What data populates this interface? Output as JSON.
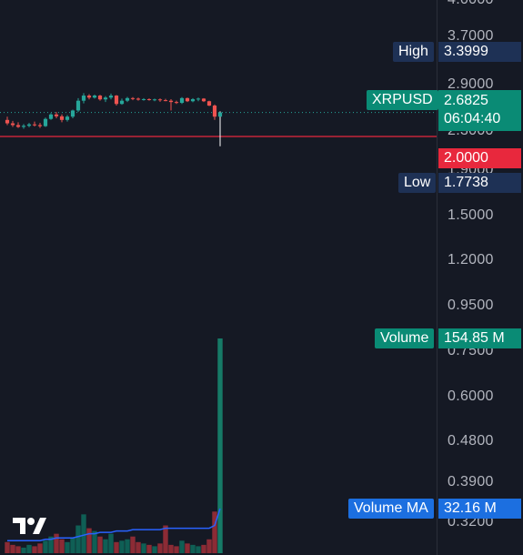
{
  "price_axis": {
    "ticks": [
      "4.0000",
      "3.7000",
      "2.9000",
      "2.3000",
      "1.9000",
      "1.5000",
      "1.2000",
      "0.9500",
      "0.7500",
      "0.6000",
      "0.4800",
      "0.3900",
      "0.3200"
    ]
  },
  "tags": {
    "high": {
      "label": "High",
      "value": "3.3999"
    },
    "symbol": {
      "label": "XRPUSD",
      "value": "2.6825",
      "countdown": "06:04:40"
    },
    "alert": {
      "value": "2.0000"
    },
    "low": {
      "label": "Low",
      "value": "1.7738"
    },
    "volume": {
      "label": "Volume",
      "value": "154.85 M"
    },
    "volume_ma": {
      "label": "Volume MA",
      "value": "32.16 M"
    }
  },
  "colors": {
    "background": "#151924",
    "up": "#26a69a",
    "down": "#ef5350",
    "volume_up": "#0f5f55",
    "volume_down": "#8c2b35",
    "ma_line": "#2962ff",
    "alert_line": "#e8283d",
    "current_price_line": "#26a69a"
  },
  "logo": {
    "name": "tradingview-logo-icon"
  },
  "chart_data": {
    "type": "candlestick",
    "symbol": "XRPUSD",
    "y_scale": "log",
    "ylim": [
      0.3,
      4.2
    ],
    "candles": [
      {
        "o": 2.45,
        "h": 2.55,
        "l": 2.3,
        "c": 2.35
      },
      {
        "o": 2.35,
        "h": 2.42,
        "l": 2.25,
        "c": 2.3
      },
      {
        "o": 2.3,
        "h": 2.38,
        "l": 2.22,
        "c": 2.25
      },
      {
        "o": 2.25,
        "h": 2.33,
        "l": 2.2,
        "c": 2.28
      },
      {
        "o": 2.28,
        "h": 2.36,
        "l": 2.24,
        "c": 2.32
      },
      {
        "o": 2.32,
        "h": 2.4,
        "l": 2.26,
        "c": 2.3
      },
      {
        "o": 2.3,
        "h": 2.36,
        "l": 2.22,
        "c": 2.27
      },
      {
        "o": 2.27,
        "h": 2.52,
        "l": 2.25,
        "c": 2.48
      },
      {
        "o": 2.48,
        "h": 2.66,
        "l": 2.45,
        "c": 2.62
      },
      {
        "o": 2.62,
        "h": 2.7,
        "l": 2.5,
        "c": 2.56
      },
      {
        "o": 2.56,
        "h": 2.62,
        "l": 2.38,
        "c": 2.45
      },
      {
        "o": 2.45,
        "h": 2.6,
        "l": 2.4,
        "c": 2.55
      },
      {
        "o": 2.55,
        "h": 2.78,
        "l": 2.5,
        "c": 2.75
      },
      {
        "o": 2.75,
        "h": 3.2,
        "l": 2.7,
        "c": 3.1
      },
      {
        "o": 3.1,
        "h": 3.4,
        "l": 3.0,
        "c": 3.3
      },
      {
        "o": 3.3,
        "h": 3.36,
        "l": 3.15,
        "c": 3.22
      },
      {
        "o": 3.22,
        "h": 3.34,
        "l": 3.18,
        "c": 3.3
      },
      {
        "o": 3.3,
        "h": 3.33,
        "l": 3.1,
        "c": 3.15
      },
      {
        "o": 3.15,
        "h": 3.28,
        "l": 3.05,
        "c": 3.22
      },
      {
        "o": 3.22,
        "h": 3.38,
        "l": 3.15,
        "c": 3.3
      },
      {
        "o": 3.3,
        "h": 3.32,
        "l": 2.92,
        "c": 2.98
      },
      {
        "o": 2.98,
        "h": 3.18,
        "l": 2.95,
        "c": 3.1
      },
      {
        "o": 3.1,
        "h": 3.25,
        "l": 3.05,
        "c": 3.2
      },
      {
        "o": 3.2,
        "h": 3.24,
        "l": 3.12,
        "c": 3.18
      },
      {
        "o": 3.18,
        "h": 3.22,
        "l": 3.1,
        "c": 3.14
      },
      {
        "o": 3.14,
        "h": 3.2,
        "l": 3.1,
        "c": 3.16
      },
      {
        "o": 3.16,
        "h": 3.19,
        "l": 3.1,
        "c": 3.13
      },
      {
        "o": 3.13,
        "h": 3.18,
        "l": 3.08,
        "c": 3.15
      },
      {
        "o": 3.15,
        "h": 3.19,
        "l": 3.06,
        "c": 3.12
      },
      {
        "o": 3.12,
        "h": 3.17,
        "l": 3.08,
        "c": 3.1
      },
      {
        "o": 3.1,
        "h": 3.16,
        "l": 2.75,
        "c": 3.05
      },
      {
        "o": 3.05,
        "h": 3.1,
        "l": 2.98,
        "c": 3.02
      },
      {
        "o": 3.02,
        "h": 3.24,
        "l": 2.98,
        "c": 3.2
      },
      {
        "o": 3.2,
        "h": 3.22,
        "l": 3.05,
        "c": 3.08
      },
      {
        "o": 3.08,
        "h": 3.2,
        "l": 3.04,
        "c": 3.16
      },
      {
        "o": 3.16,
        "h": 3.22,
        "l": 3.08,
        "c": 3.18
      },
      {
        "o": 3.18,
        "h": 3.2,
        "l": 3.05,
        "c": 3.08
      },
      {
        "o": 3.08,
        "h": 3.1,
        "l": 2.9,
        "c": 2.92
      },
      {
        "o": 2.92,
        "h": 2.96,
        "l": 2.45,
        "c": 2.55
      },
      {
        "o": 2.55,
        "h": 2.72,
        "l": 1.7738,
        "c": 2.6825
      }
    ],
    "volume": [
      8,
      6,
      5,
      4,
      6,
      5,
      7,
      9,
      12,
      14,
      10,
      8,
      11,
      20,
      28,
      18,
      16,
      12,
      10,
      14,
      8,
      9,
      10,
      12,
      8,
      7,
      6,
      5,
      7,
      20,
      6,
      5,
      9,
      7,
      6,
      5,
      6,
      10,
      30,
      154.85
    ],
    "volume_ma": [
      9,
      9,
      9,
      9,
      9,
      9,
      9,
      10,
      10,
      11,
      11,
      11,
      11,
      12,
      13,
      14,
      14,
      15,
      15,
      15,
      16,
      16,
      16,
      17,
      17,
      17,
      17,
      17,
      17,
      18,
      18,
      18,
      18,
      18,
      18,
      18,
      18,
      18,
      20,
      32.16
    ],
    "current_price": 2.6825,
    "alert_level": 2.0
  }
}
